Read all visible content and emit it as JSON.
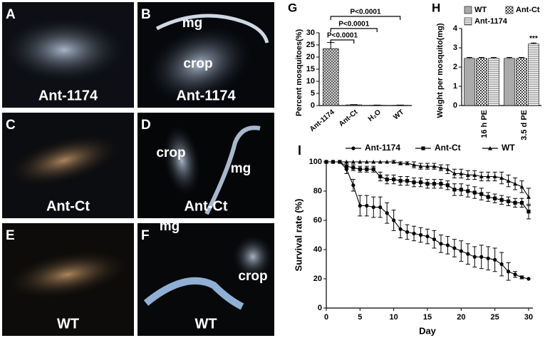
{
  "panels": [
    {
      "label": "A",
      "caption": "Ant-1174",
      "annotations": []
    },
    {
      "label": "B",
      "caption": "Ant-1174",
      "annotations": [
        "mg",
        "crop"
      ]
    },
    {
      "label": "C",
      "caption": "Ant-Ct",
      "annotations": []
    },
    {
      "label": "D",
      "caption": "Ant-Ct",
      "annotations": [
        "crop",
        "mg"
      ]
    },
    {
      "label": "E",
      "caption": "WT",
      "annotations": []
    },
    {
      "label": "F",
      "caption": "WT",
      "annotations": [
        "mg",
        "crop"
      ]
    }
  ],
  "chart_data": [
    {
      "type": "bar",
      "panel_label": "G",
      "ylabel": "Percent mosquitoes(%)",
      "categories": [
        "Ant-1174",
        "Ant-Ct",
        "H₂O",
        "WT"
      ],
      "values": [
        23.5,
        0.3,
        0.1,
        0.1
      ],
      "errors": [
        2.5,
        0.1,
        0.1,
        0.1
      ],
      "color": "#555",
      "pattern": "crosshatch",
      "ylim": [
        0,
        30
      ],
      "yticks": [
        0,
        5,
        10,
        15,
        20,
        25,
        30
      ],
      "annotations": [
        "P<0.0001",
        "P<0.0001",
        "P<0.0001"
      ]
    },
    {
      "type": "grouped-bar",
      "panel_label": "H",
      "ylabel": "Weight per mosquito(mg)",
      "categories": [
        "16 h PE",
        "3.5 d PE"
      ],
      "series": [
        {
          "name": "WT",
          "color": "#aaa",
          "pattern": "solid",
          "values": [
            2.45,
            2.45
          ],
          "errors": [
            0.05,
            0.05
          ]
        },
        {
          "name": "Ant-Ct",
          "color": "#444",
          "pattern": "checker",
          "values": [
            2.45,
            2.45
          ],
          "errors": [
            0.05,
            0.05
          ]
        },
        {
          "name": "Ant-1174",
          "color": "#666",
          "pattern": "stripes",
          "values": [
            2.45,
            3.2
          ],
          "errors": [
            0.05,
            0.05
          ]
        }
      ],
      "ylim": [
        0,
        4
      ],
      "yticks": [
        0,
        1,
        2,
        3,
        4
      ],
      "annotation": "***"
    },
    {
      "type": "line",
      "panel_label": "I",
      "xlabel": "Day",
      "ylabel": "Survival rate (%)",
      "x": [
        0,
        1,
        2,
        3,
        4,
        5,
        6,
        7,
        8,
        9,
        10,
        11,
        12,
        13,
        14,
        15,
        16,
        17,
        18,
        19,
        20,
        21,
        22,
        23,
        24,
        25,
        26,
        27,
        28,
        29,
        30
      ],
      "series": [
        {
          "name": "Ant-1174",
          "color": "#000",
          "marker": "circle",
          "values": [
            100,
            100,
            100,
            95,
            84,
            70,
            70,
            69,
            69,
            65,
            60,
            54,
            52,
            51,
            50,
            49,
            47,
            44,
            43,
            41,
            39,
            37,
            35,
            35,
            34,
            33,
            30,
            25,
            23,
            21,
            20
          ],
          "errors": [
            0,
            0,
            0,
            3,
            4,
            7,
            7,
            7,
            7,
            7,
            7,
            6,
            5,
            5,
            5,
            5,
            6,
            6,
            6,
            6,
            7,
            7,
            7,
            8,
            8,
            8,
            8,
            6,
            2,
            1,
            0
          ]
        },
        {
          "name": "Ant-Ct",
          "color": "#000",
          "marker": "square",
          "values": [
            100,
            100,
            100,
            97,
            96,
            95,
            95,
            95,
            90,
            88,
            88,
            87,
            87,
            86,
            86,
            85,
            85,
            85,
            84,
            81,
            81,
            80,
            79,
            78,
            76,
            75,
            74,
            73,
            72,
            72,
            66
          ],
          "errors": [
            0,
            0,
            0,
            2,
            2,
            2,
            2,
            2,
            3,
            3,
            3,
            3,
            3,
            3,
            3,
            3,
            3,
            3,
            3,
            4,
            4,
            4,
            4,
            4,
            3,
            3,
            3,
            3,
            3,
            3,
            5
          ]
        },
        {
          "name": "WT",
          "color": "#000",
          "marker": "triangle",
          "values": [
            100,
            100,
            100,
            100,
            100,
            100,
            100,
            100,
            100,
            100,
            100,
            99,
            99,
            98,
            97,
            97,
            97,
            96,
            95,
            92,
            92,
            91,
            91,
            90,
            90,
            90,
            89,
            87,
            85,
            83,
            76
          ],
          "errors": [
            0,
            0,
            0,
            0,
            0,
            0,
            0,
            0,
            0,
            0,
            1,
            1,
            1,
            2,
            2,
            2,
            2,
            2,
            3,
            3,
            3,
            3,
            3,
            3,
            3,
            3,
            4,
            4,
            4,
            4,
            6
          ]
        }
      ],
      "xlim": [
        0,
        30
      ],
      "xticks": [
        0,
        5,
        10,
        15,
        20,
        25,
        30
      ],
      "ylim": [
        0,
        100
      ],
      "yticks": [
        0,
        20,
        40,
        60,
        80,
        100
      ]
    }
  ]
}
